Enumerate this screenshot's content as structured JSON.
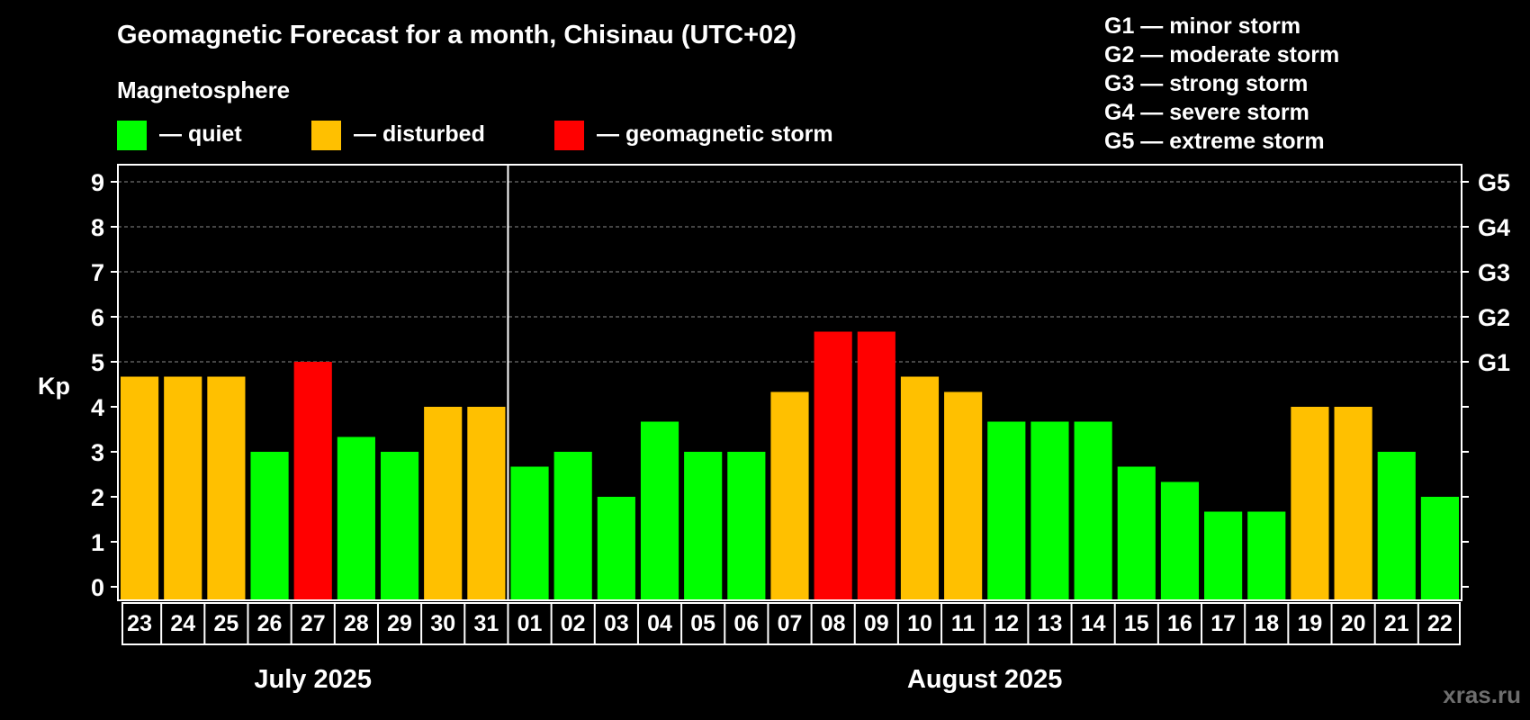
{
  "chart_data": {
    "type": "bar",
    "title": "Geomagnetic Forecast for a month, Chisinau (UTC+02)",
    "subtitle": "Magnetosphere",
    "ylabel": "Kp",
    "ylim": [
      0,
      9
    ],
    "yticks": [
      "0",
      "1",
      "2",
      "3",
      "4",
      "5",
      "6",
      "7",
      "8",
      "9"
    ],
    "right_axis": {
      "labels": [
        {
          "kp": 5,
          "text": "G1"
        },
        {
          "kp": 6,
          "text": "G2"
        },
        {
          "kp": 7,
          "text": "G3"
        },
        {
          "kp": 8,
          "text": "G4"
        },
        {
          "kp": 9,
          "text": "G5"
        }
      ]
    },
    "legend": [
      {
        "key": "quiet",
        "label": "— quiet",
        "color": "#00ff00"
      },
      {
        "key": "disturbed",
        "label": "— disturbed",
        "color": "#ffc000"
      },
      {
        "key": "storm",
        "label": "— geomagnetic storm",
        "color": "#ff0000"
      }
    ],
    "g_scale_legend": [
      "G1 — minor storm",
      "G2 — moderate storm",
      "G3 — strong storm",
      "G4 — severe storm",
      "G5 — extreme storm"
    ],
    "months": [
      {
        "label": "July 2025",
        "days": 9
      },
      {
        "label": "August 2025",
        "days": 22
      }
    ],
    "categories": [
      "23",
      "24",
      "25",
      "26",
      "27",
      "28",
      "29",
      "30",
      "31",
      "01",
      "02",
      "03",
      "04",
      "05",
      "06",
      "07",
      "08",
      "09",
      "10",
      "11",
      "12",
      "13",
      "14",
      "15",
      "16",
      "17",
      "18",
      "19",
      "20",
      "21",
      "22"
    ],
    "values": [
      4.67,
      4.67,
      4.67,
      3.0,
      5.0,
      3.33,
      3.0,
      4.0,
      4.0,
      2.67,
      3.0,
      2.0,
      3.67,
      3.0,
      3.0,
      4.33,
      5.67,
      5.67,
      4.67,
      4.33,
      3.67,
      3.67,
      3.67,
      2.67,
      2.33,
      1.67,
      1.67,
      4.0,
      4.0,
      3.0,
      2.0
    ],
    "status": [
      "disturbed",
      "disturbed",
      "disturbed",
      "quiet",
      "storm",
      "quiet",
      "quiet",
      "disturbed",
      "disturbed",
      "quiet",
      "quiet",
      "quiet",
      "quiet",
      "quiet",
      "quiet",
      "disturbed",
      "storm",
      "storm",
      "disturbed",
      "disturbed",
      "quiet",
      "quiet",
      "quiet",
      "quiet",
      "quiet",
      "quiet",
      "quiet",
      "disturbed",
      "disturbed",
      "quiet",
      "quiet"
    ]
  },
  "watermark": "xras.ru"
}
